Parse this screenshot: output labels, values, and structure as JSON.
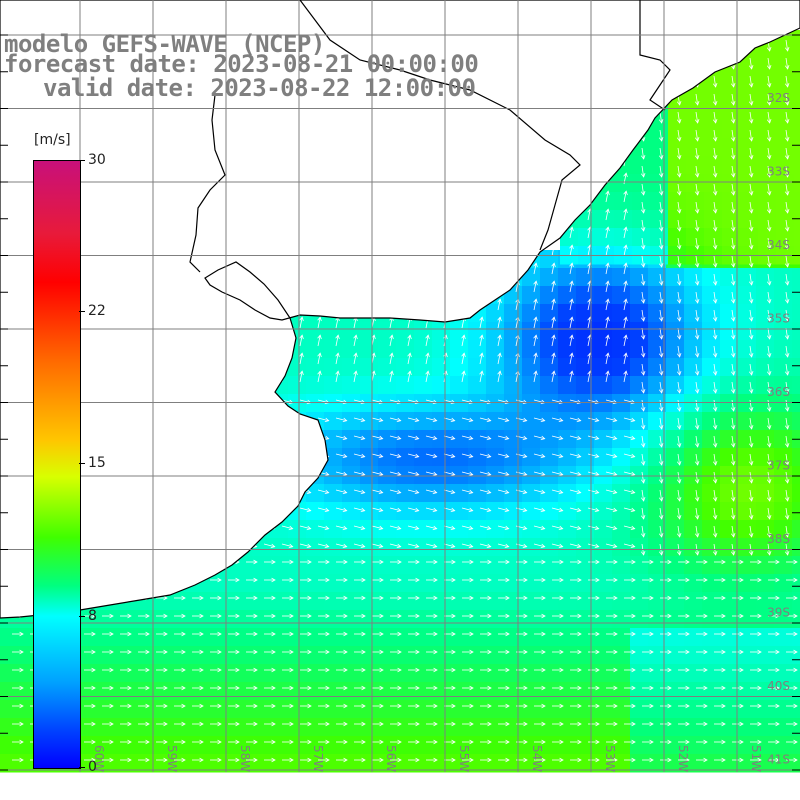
{
  "title": {
    "model": "modelo GEFS-WAVE (NCEP)",
    "forecast": "forecast date: 2023-08-21 00:00:00",
    "valid": "valid date: 2023-08-22 12:00:00"
  },
  "colorbar": {
    "unit": "[m/s]",
    "ticks": [
      "30",
      "22",
      "15",
      "8",
      "0"
    ],
    "colors": [
      "#c8107a",
      "#ff0000",
      "#ff6a00",
      "#ffc600",
      "#40ff00",
      "#00ffff",
      "#00a0ff",
      "#0000ff"
    ]
  },
  "map": {
    "lat_labels": [
      "32S",
      "33S",
      "34S",
      "35S",
      "36S",
      "37S",
      "38S",
      "39S",
      "40S",
      "41S"
    ],
    "lon_labels": [
      "60W",
      "59W",
      "58W",
      "57W",
      "56W",
      "55W",
      "54W",
      "53W",
      "52W",
      "51W"
    ],
    "land_color": "#ffffff",
    "grid_color": "#7f7f7f",
    "coast_color": "#000000",
    "arrow_color": "#ffffff"
  }
}
